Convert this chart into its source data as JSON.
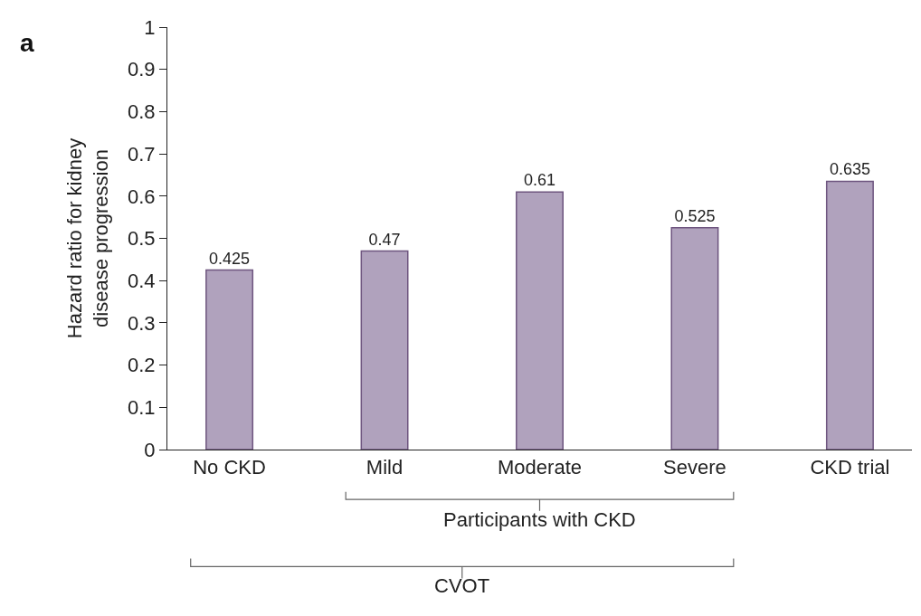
{
  "chart_data": {
    "type": "bar",
    "ylabel": "Hazard ratio for kidney\ndisease progression",
    "categories": [
      "No CKD",
      "Mild",
      "Moderate",
      "Severe",
      "CKD trial"
    ],
    "values": [
      0.425,
      0.47,
      0.61,
      0.525,
      0.635
    ],
    "color": "#b0a2bd",
    "ylim": [
      0,
      1
    ],
    "yticks": [
      0,
      0.1,
      0.2,
      0.3,
      0.4,
      0.5,
      0.6,
      0.7,
      0.8,
      0.9,
      1
    ],
    "data_labels": true,
    "annotations": [
      "a",
      "Participants with CKD",
      "CVOT"
    ]
  }
}
